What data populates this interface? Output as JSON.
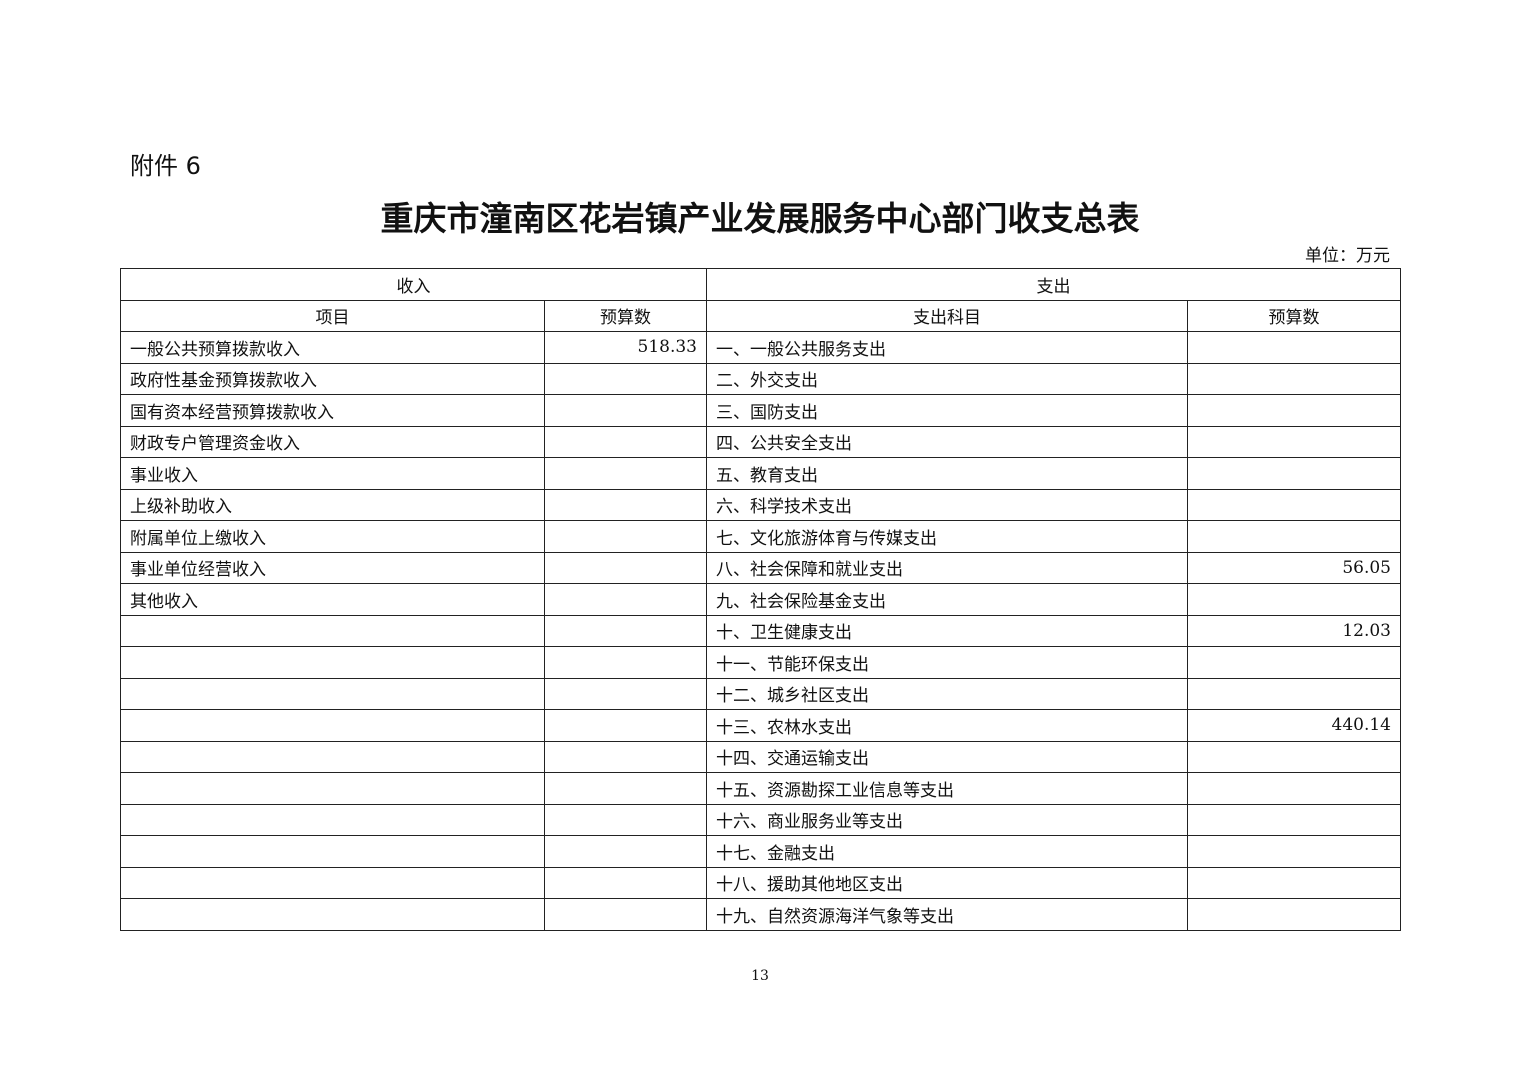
{
  "attachment": "附件 6",
  "title": "重庆市潼南区花岩镇产业发展服务中心部门收支总表",
  "unit": "单位：万元",
  "headers": {
    "income": "收入",
    "expenditure": "支出",
    "item": "项目",
    "budget": "预算数",
    "exp_item": "支出科目",
    "exp_budget": "预算数"
  },
  "rows": [
    {
      "income_item": "一般公共预算拨款收入",
      "income_budget": "518.33",
      "exp_item": "一、一般公共服务支出",
      "exp_budget": ""
    },
    {
      "income_item": "政府性基金预算拨款收入",
      "income_budget": "",
      "exp_item": "二、外交支出",
      "exp_budget": ""
    },
    {
      "income_item": "国有资本经营预算拨款收入",
      "income_budget": "",
      "exp_item": "三、国防支出",
      "exp_budget": ""
    },
    {
      "income_item": "财政专户管理资金收入",
      "income_budget": "",
      "exp_item": "四、公共安全支出",
      "exp_budget": ""
    },
    {
      "income_item": "事业收入",
      "income_budget": "",
      "exp_item": "五、教育支出",
      "exp_budget": ""
    },
    {
      "income_item": "上级补助收入",
      "income_budget": "",
      "exp_item": "六、科学技术支出",
      "exp_budget": ""
    },
    {
      "income_item": "附属单位上缴收入",
      "income_budget": "",
      "exp_item": "七、文化旅游体育与传媒支出",
      "exp_budget": ""
    },
    {
      "income_item": "事业单位经营收入",
      "income_budget": "",
      "exp_item": "八、社会保障和就业支出",
      "exp_budget": "56.05"
    },
    {
      "income_item": "其他收入",
      "income_budget": "",
      "exp_item": "九、社会保险基金支出",
      "exp_budget": ""
    },
    {
      "income_item": "",
      "income_budget": "",
      "exp_item": "十、卫生健康支出",
      "exp_budget": "12.03"
    },
    {
      "income_item": "",
      "income_budget": "",
      "exp_item": "十一、节能环保支出",
      "exp_budget": ""
    },
    {
      "income_item": "",
      "income_budget": "",
      "exp_item": "十二、城乡社区支出",
      "exp_budget": ""
    },
    {
      "income_item": "",
      "income_budget": "",
      "exp_item": "十三、农林水支出",
      "exp_budget": "440.14"
    },
    {
      "income_item": "",
      "income_budget": "",
      "exp_item": "十四、交通运输支出",
      "exp_budget": ""
    },
    {
      "income_item": "",
      "income_budget": "",
      "exp_item": "十五、资源勘探工业信息等支出",
      "exp_budget": ""
    },
    {
      "income_item": "",
      "income_budget": "",
      "exp_item": "十六、商业服务业等支出",
      "exp_budget": ""
    },
    {
      "income_item": "",
      "income_budget": "",
      "exp_item": "十七、金融支出",
      "exp_budget": ""
    },
    {
      "income_item": "",
      "income_budget": "",
      "exp_item": "十八、援助其他地区支出",
      "exp_budget": ""
    },
    {
      "income_item": "",
      "income_budget": "",
      "exp_item": "十九、自然资源海洋气象等支出",
      "exp_budget": ""
    }
  ],
  "page_number": "13"
}
